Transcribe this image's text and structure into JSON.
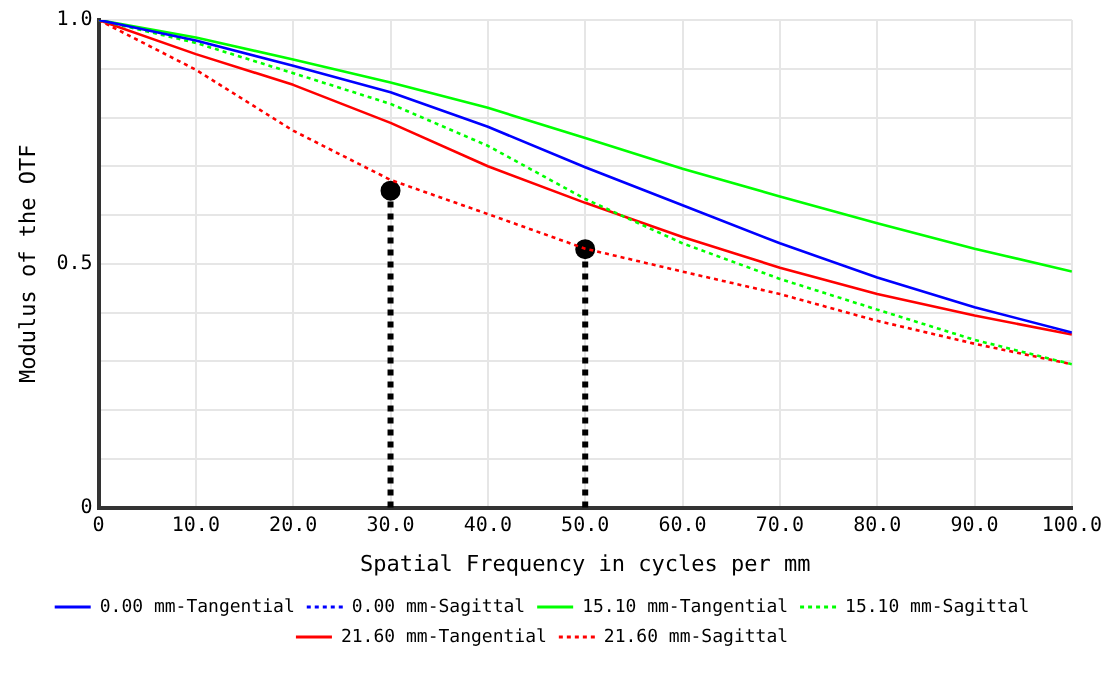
{
  "chart_data": {
    "type": "line",
    "xlabel": "Spatial Frequency in cycles per mm",
    "ylabel": "Modulus of the OTF",
    "x": [
      0,
      10,
      20,
      30,
      40,
      50,
      60,
      70,
      80,
      90,
      100
    ],
    "series": [
      {
        "name": "0.00 mm-Tangential",
        "color": "#0000ff",
        "line_style": "solid",
        "values": [
          1,
          0.958,
          0.906,
          0.852,
          0.781,
          0.698,
          0.62,
          0.542,
          0.472,
          0.411,
          0.359
        ]
      },
      {
        "name": "0.00 mm-Sagittal",
        "color": "#0000ff",
        "line_style": "dotted",
        "values": [
          null,
          null,
          null,
          null,
          null,
          null,
          null,
          null,
          null,
          null,
          null
        ]
      },
      {
        "name": "15.10 mm-Tangential",
        "color": "#00ff00",
        "line_style": "solid",
        "values": [
          1,
          0.964,
          0.919,
          0.872,
          0.82,
          0.758,
          0.695,
          0.638,
          0.583,
          0.531,
          0.484
        ]
      },
      {
        "name": "15.10 mm-Sagittal",
        "color": "#00ff00",
        "line_style": "dotted",
        "values": [
          1,
          0.953,
          0.891,
          0.828,
          0.742,
          0.633,
          0.542,
          0.469,
          0.406,
          0.344,
          0.294
        ]
      },
      {
        "name": "21.60 mm-Tangential",
        "color": "#ff0000",
        "line_style": "solid",
        "values": [
          1,
          0.93,
          0.867,
          0.789,
          0.7,
          0.625,
          0.555,
          0.492,
          0.438,
          0.394,
          0.355
        ]
      },
      {
        "name": "21.60 mm-Sagittal",
        "color": "#ff0000",
        "line_style": "dotted",
        "values": [
          1,
          0.898,
          0.773,
          0.672,
          0.602,
          0.531,
          0.484,
          0.438,
          0.383,
          0.336,
          0.294
        ]
      },
      {
        "type": "lollipop",
        "color": "#000000",
        "line_style": "dotted",
        "marker": "circle",
        "x": [
          30,
          50
        ],
        "values": [
          0.65,
          0.53
        ]
      }
    ],
    "xlim": [
      0,
      100
    ],
    "xticks": [
      0,
      {
        "value": 10,
        "label": "10.0"
      },
      {
        "value": 20,
        "label": "20.0"
      },
      {
        "value": 30,
        "label": "30.0"
      },
      {
        "value": 40,
        "label": "40.0"
      },
      {
        "value": 50,
        "label": "50.0"
      },
      {
        "value": 60,
        "label": "60.0"
      },
      {
        "value": 70,
        "label": "70.0"
      },
      {
        "value": 80,
        "label": "80.0"
      },
      {
        "value": 90,
        "label": "90.0"
      },
      {
        "value": 100,
        "label": "100.0"
      }
    ],
    "ylim": [
      0,
      1
    ],
    "yticks": [
      0,
      {
        "value": 0.1,
        "label": null
      },
      {
        "value": 0.2,
        "label": null
      },
      {
        "value": 0.3,
        "label": null
      },
      {
        "value": 0.4,
        "label": null
      },
      0.5,
      {
        "value": 0.6,
        "label": null
      },
      {
        "value": 0.7,
        "label": null
      },
      {
        "value": 0.8,
        "label": null
      },
      {
        "value": 0.9,
        "label": null
      },
      {
        "value": 1,
        "label": "1.0"
      }
    ],
    "grid": true,
    "legend": "bottom",
    "marker": "none"
  }
}
